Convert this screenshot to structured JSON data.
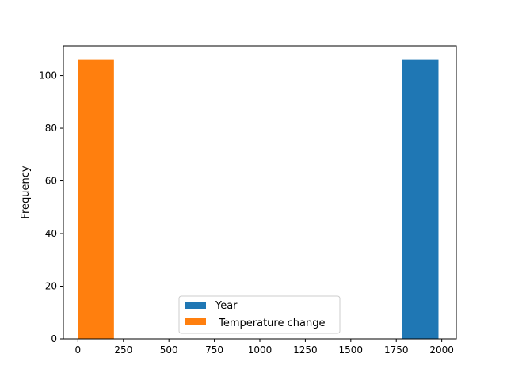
{
  "chart_data": {
    "type": "bar",
    "chart_kind": "histogram",
    "title": "",
    "xlabel": "",
    "ylabel": "Frequency",
    "xlim": [
      -80,
      2080
    ],
    "ylim": [
      0,
      111.3
    ],
    "x_ticks": [
      0,
      250,
      500,
      750,
      1000,
      1250,
      1500,
      1750,
      2000
    ],
    "x_tick_labels": [
      "0",
      "250",
      "500",
      "750",
      "1000",
      "1250",
      "1500",
      "1750",
      "2000"
    ],
    "y_ticks": [
      0,
      20,
      40,
      60,
      80,
      100
    ],
    "y_tick_labels": [
      "0",
      "20",
      "40",
      "60",
      "80",
      "100"
    ],
    "grid": false,
    "legend_position": "lower center",
    "series": [
      {
        "name": "Year",
        "color": "#1f77b4",
        "bins": [
          {
            "x0": 1783,
            "x1": 1982,
            "count": 106
          }
        ]
      },
      {
        "name": " Temperature change",
        "color": "#ff7f0e",
        "bins": [
          {
            "x0": 0,
            "x1": 198,
            "count": 106
          }
        ]
      }
    ]
  }
}
